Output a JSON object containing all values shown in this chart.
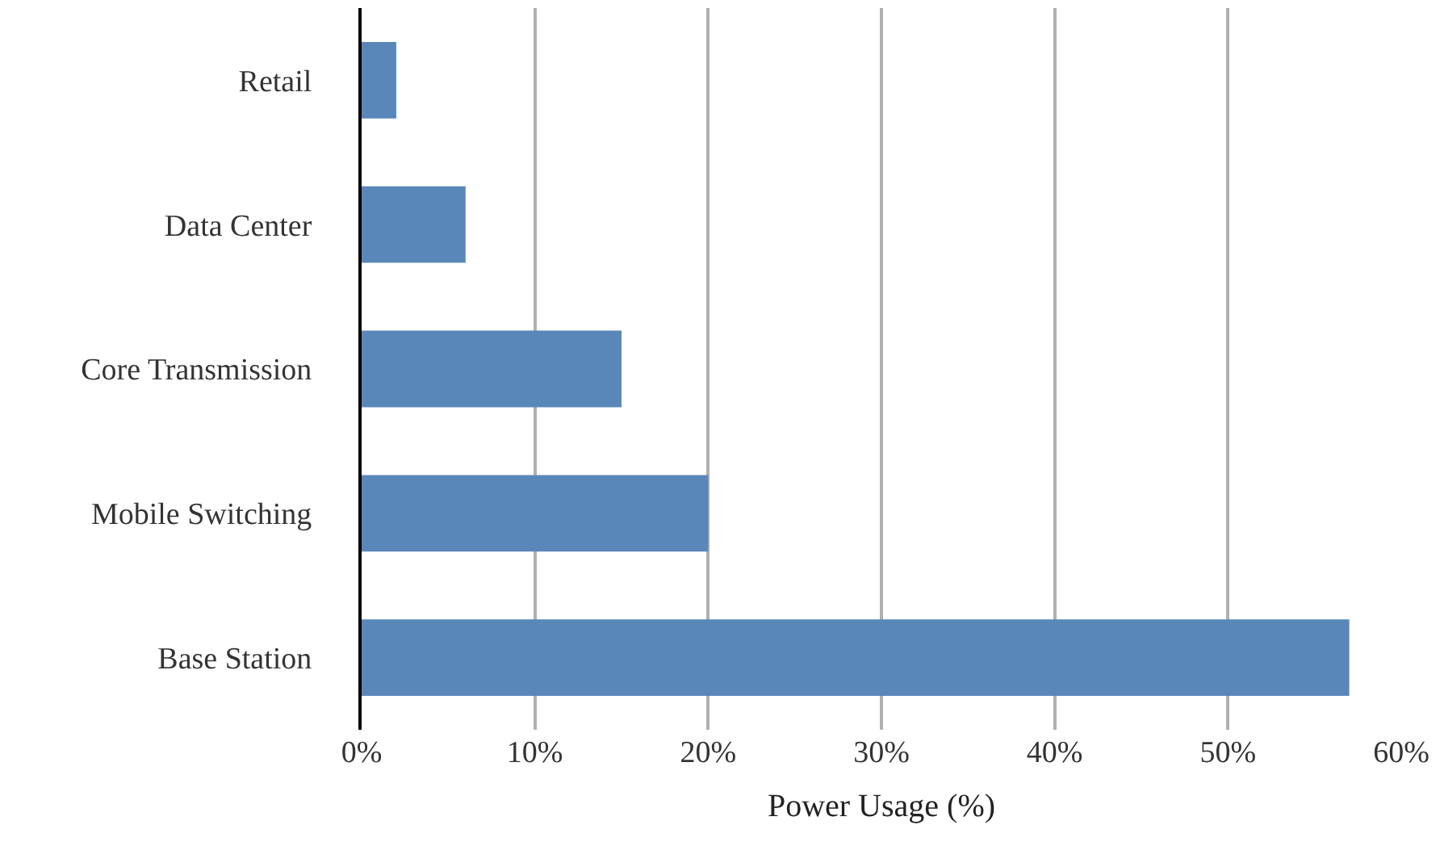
{
  "chart_data": {
    "type": "bar",
    "orientation": "horizontal",
    "categories": [
      "Retail",
      "Data Center",
      "Core Transmission",
      "Mobile Switching",
      "Base Station"
    ],
    "values": [
      2,
      6,
      15,
      20,
      57
    ],
    "color": "#5a87ba",
    "xlabel": "Power Usage (%)",
    "xlim": [
      0,
      60
    ],
    "xticks": [
      {
        "value": 0,
        "label": "0%"
      },
      {
        "value": 10,
        "label": "10%"
      },
      {
        "value": 20,
        "label": "20%"
      },
      {
        "value": 30,
        "label": "30%"
      },
      {
        "value": 40,
        "label": "40%"
      },
      {
        "value": 50,
        "label": "50%"
      },
      {
        "value": 60,
        "label": "60%"
      }
    ],
    "grid": "x",
    "legend": false
  }
}
